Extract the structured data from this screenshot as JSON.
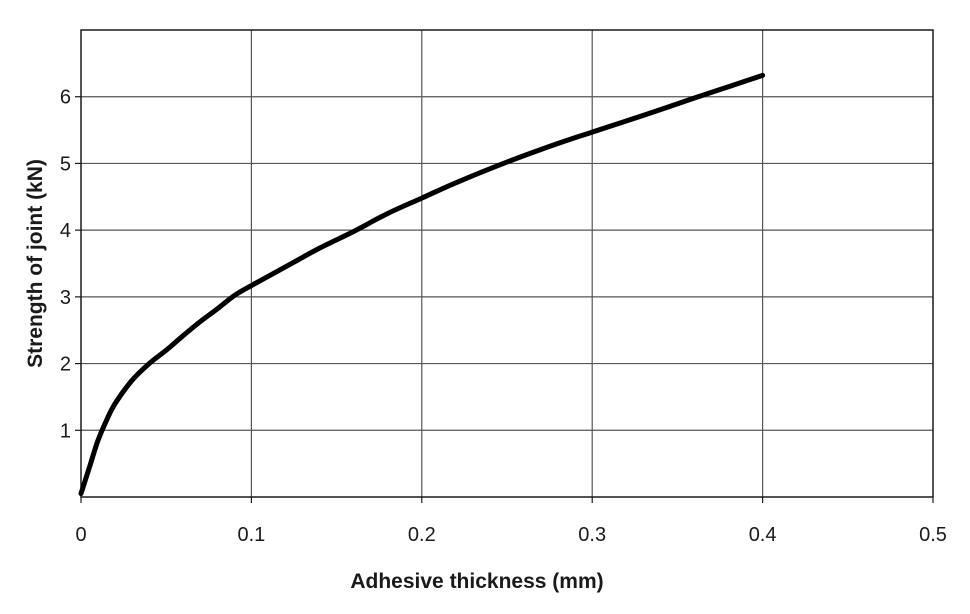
{
  "chart_data": {
    "type": "line",
    "title": "",
    "xlabel": "Adhesive thickness (mm)",
    "ylabel": "Strength of joint (kN)",
    "xlim": [
      0,
      0.5
    ],
    "ylim": [
      0,
      7
    ],
    "xticks": [
      0,
      0.1,
      0.2,
      0.3,
      0.4,
      0.5
    ],
    "xtick_labels": [
      "0",
      "0.1",
      "0.2",
      "0.3",
      "0.4",
      "0.5"
    ],
    "yticks": [
      1,
      2,
      3,
      4,
      5,
      6
    ],
    "ytick_labels": [
      "1",
      "2",
      "3",
      "4",
      "5",
      "6"
    ],
    "grid": true,
    "legend": "none",
    "series": [
      {
        "color": "#000000",
        "x": [
          0,
          0.005,
          0.01,
          0.015,
          0.02,
          0.03,
          0.04,
          0.05,
          0.06,
          0.07,
          0.08,
          0.09,
          0.1,
          0.12,
          0.14,
          0.16,
          0.18,
          0.2,
          0.22,
          0.25,
          0.28,
          0.3,
          0.33,
          0.36,
          0.38,
          0.4
        ],
        "y": [
          0.05,
          0.45,
          0.85,
          1.15,
          1.4,
          1.75,
          2.0,
          2.2,
          2.42,
          2.63,
          2.82,
          3.02,
          3.17,
          3.45,
          3.73,
          3.98,
          4.25,
          4.48,
          4.71,
          5.02,
          5.3,
          5.47,
          5.72,
          5.98,
          6.15,
          6.32
        ]
      }
    ]
  }
}
